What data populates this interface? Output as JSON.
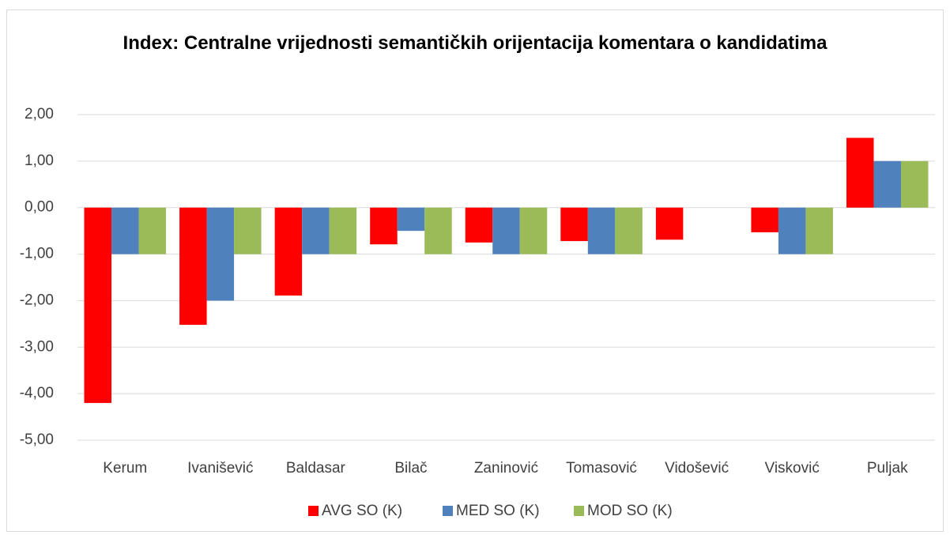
{
  "chart_data": {
    "type": "bar",
    "title": "Index: Centralne vrijednosti semantičkih orijentacija komentara o kandidatima",
    "categories": [
      "Kerum",
      "Ivanišević",
      "Baldasar",
      "Bilač",
      "Zaninović",
      "Tomasović",
      "Vidošević",
      "Visković",
      "Puljak"
    ],
    "series": [
      {
        "name": "AVG SO (K)",
        "color": "#ff0000",
        "values": [
          -4.2,
          -2.52,
          -1.89,
          -0.79,
          -0.75,
          -0.72,
          -0.69,
          -0.53,
          1.5
        ]
      },
      {
        "name": "MED SO (K)",
        "color": "#4f81bd",
        "values": [
          -1,
          -2,
          -1,
          -0.5,
          -1,
          -1,
          0,
          -1,
          1
        ]
      },
      {
        "name": "MOD SO (K)",
        "color": "#9bbb59",
        "values": [
          -1,
          -1,
          -1,
          -1,
          -1,
          -1,
          0,
          -1,
          1
        ]
      }
    ],
    "ylim": [
      -5,
      2
    ],
    "yticks": [
      {
        "value": -5,
        "label": "-5,00"
      },
      {
        "value": -4,
        "label": "-4,00"
      },
      {
        "value": -3,
        "label": "-3,00"
      },
      {
        "value": -2,
        "label": "-2,00"
      },
      {
        "value": -1,
        "label": "-1,00"
      },
      {
        "value": 0,
        "label": "0,00"
      },
      {
        "value": 1,
        "label": "1,00"
      },
      {
        "value": 2,
        "label": "2,00"
      }
    ],
    "grid": true,
    "legend": "bottom"
  }
}
